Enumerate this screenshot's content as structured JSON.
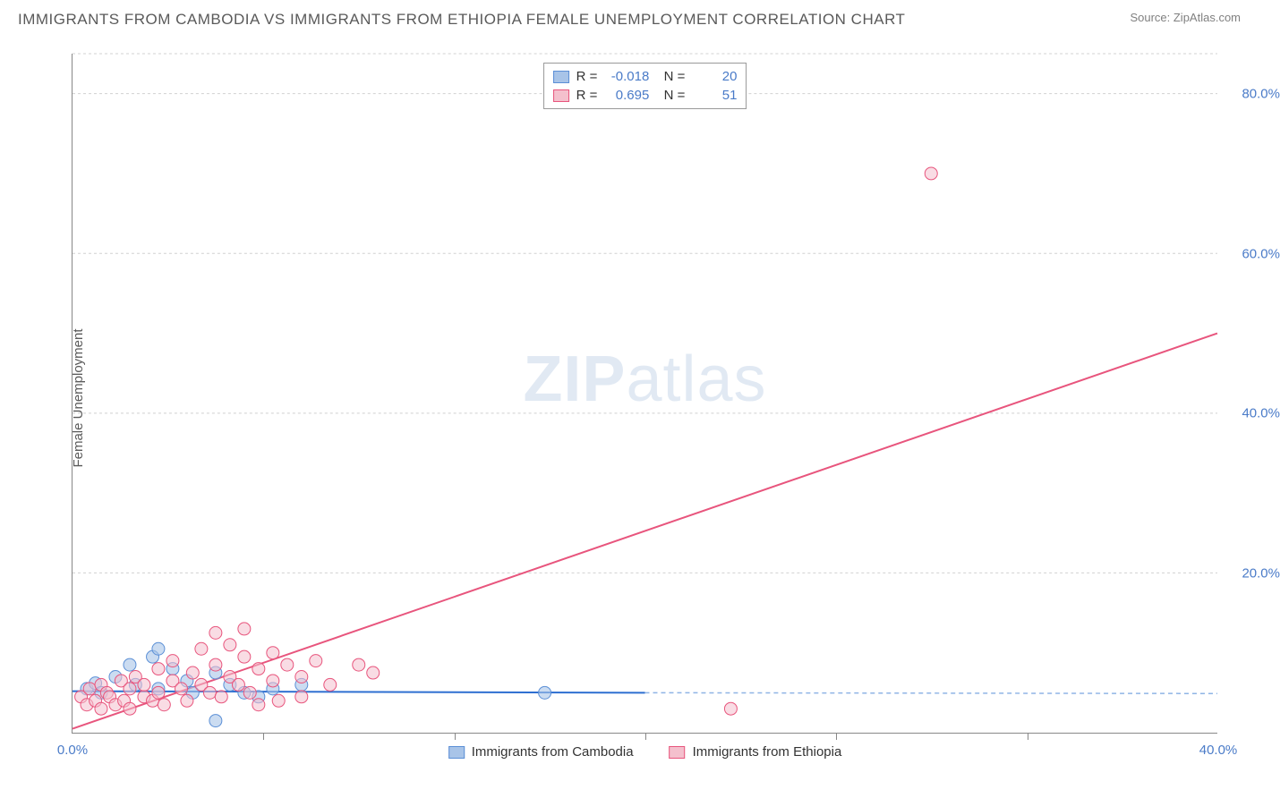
{
  "title": "IMMIGRANTS FROM CAMBODIA VS IMMIGRANTS FROM ETHIOPIA FEMALE UNEMPLOYMENT CORRELATION CHART",
  "source": "Source: ZipAtlas.com",
  "watermark_zip": "ZIP",
  "watermark_atlas": "atlas",
  "y_axis_label": "Female Unemployment",
  "chart": {
    "type": "scatter",
    "xlim": [
      0,
      40
    ],
    "ylim": [
      0,
      85
    ],
    "x_ticks": [
      0,
      40
    ],
    "x_tick_labels": [
      "0.0%",
      "40.0%"
    ],
    "x_minor_ticks": [
      6.67,
      13.33,
      20,
      26.67,
      33.33
    ],
    "y_ticks": [
      20,
      40,
      60,
      80
    ],
    "y_tick_labels": [
      "20.0%",
      "40.0%",
      "60.0%",
      "80.0%"
    ],
    "grid_color": "#d0d0d0",
    "background_color": "#ffffff",
    "series": [
      {
        "name": "Immigrants from Cambodia",
        "color_fill": "#a8c4e8",
        "color_stroke": "#5b8fd6",
        "marker_radius": 7,
        "marker_opacity": 0.6,
        "R": "-0.018",
        "N": "20",
        "regression": {
          "x1": 0,
          "y1": 5.2,
          "x2": 20,
          "y2": 5.0,
          "color": "#2e6fd1",
          "width": 2
        },
        "regression_ext": {
          "x1": 20,
          "y1": 5.0,
          "x2": 40,
          "y2": 4.9,
          "color": "#8fb4e5",
          "width": 1.5,
          "dash": "5,4"
        },
        "points": [
          {
            "x": 0.5,
            "y": 5.5
          },
          {
            "x": 0.8,
            "y": 6.2
          },
          {
            "x": 1.0,
            "y": 5.0
          },
          {
            "x": 1.5,
            "y": 7.0
          },
          {
            "x": 2.0,
            "y": 8.5
          },
          {
            "x": 2.2,
            "y": 6.0
          },
          {
            "x": 2.8,
            "y": 9.5
          },
          {
            "x": 3.0,
            "y": 5.5
          },
          {
            "x": 3.0,
            "y": 10.5
          },
          {
            "x": 3.5,
            "y": 8.0
          },
          {
            "x": 4.0,
            "y": 6.5
          },
          {
            "x": 4.2,
            "y": 5.0
          },
          {
            "x": 5.0,
            "y": 7.5
          },
          {
            "x": 5.0,
            "y": 1.5
          },
          {
            "x": 5.5,
            "y": 6.0
          },
          {
            "x": 6.0,
            "y": 5.0
          },
          {
            "x": 6.5,
            "y": 4.5
          },
          {
            "x": 7.0,
            "y": 5.5
          },
          {
            "x": 8.0,
            "y": 6.0
          },
          {
            "x": 16.5,
            "y": 5.0
          }
        ]
      },
      {
        "name": "Immigrants from Ethiopia",
        "color_fill": "#f4c0cd",
        "color_stroke": "#e8557d",
        "marker_radius": 7,
        "marker_opacity": 0.55,
        "R": "0.695",
        "N": "51",
        "regression": {
          "x1": 0,
          "y1": 0.5,
          "x2": 40,
          "y2": 50,
          "color": "#e8557d",
          "width": 2
        },
        "points": [
          {
            "x": 0.3,
            "y": 4.5
          },
          {
            "x": 0.5,
            "y": 3.5
          },
          {
            "x": 0.6,
            "y": 5.5
          },
          {
            "x": 0.8,
            "y": 4.0
          },
          {
            "x": 1.0,
            "y": 3.0
          },
          {
            "x": 1.0,
            "y": 6.0
          },
          {
            "x": 1.2,
            "y": 5.0
          },
          {
            "x": 1.3,
            "y": 4.5
          },
          {
            "x": 1.5,
            "y": 3.5
          },
          {
            "x": 1.7,
            "y": 6.5
          },
          {
            "x": 1.8,
            "y": 4.0
          },
          {
            "x": 2.0,
            "y": 5.5
          },
          {
            "x": 2.0,
            "y": 3.0
          },
          {
            "x": 2.2,
            "y": 7.0
          },
          {
            "x": 2.5,
            "y": 4.5
          },
          {
            "x": 2.5,
            "y": 6.0
          },
          {
            "x": 2.8,
            "y": 4.0
          },
          {
            "x": 3.0,
            "y": 8.0
          },
          {
            "x": 3.0,
            "y": 5.0
          },
          {
            "x": 3.2,
            "y": 3.5
          },
          {
            "x": 3.5,
            "y": 6.5
          },
          {
            "x": 3.5,
            "y": 9.0
          },
          {
            "x": 3.8,
            "y": 5.5
          },
          {
            "x": 4.0,
            "y": 4.0
          },
          {
            "x": 4.2,
            "y": 7.5
          },
          {
            "x": 4.5,
            "y": 10.5
          },
          {
            "x": 4.5,
            "y": 6.0
          },
          {
            "x": 4.8,
            "y": 5.0
          },
          {
            "x": 5.0,
            "y": 8.5
          },
          {
            "x": 5.0,
            "y": 12.5
          },
          {
            "x": 5.2,
            "y": 4.5
          },
          {
            "x": 5.5,
            "y": 7.0
          },
          {
            "x": 5.5,
            "y": 11.0
          },
          {
            "x": 5.8,
            "y": 6.0
          },
          {
            "x": 6.0,
            "y": 9.5
          },
          {
            "x": 6.0,
            "y": 13.0
          },
          {
            "x": 6.2,
            "y": 5.0
          },
          {
            "x": 6.5,
            "y": 8.0
          },
          {
            "x": 6.5,
            "y": 3.5
          },
          {
            "x": 7.0,
            "y": 10.0
          },
          {
            "x": 7.0,
            "y": 6.5
          },
          {
            "x": 7.2,
            "y": 4.0
          },
          {
            "x": 7.5,
            "y": 8.5
          },
          {
            "x": 8.0,
            "y": 7.0
          },
          {
            "x": 8.0,
            "y": 4.5
          },
          {
            "x": 8.5,
            "y": 9.0
          },
          {
            "x": 9.0,
            "y": 6.0
          },
          {
            "x": 10.0,
            "y": 8.5
          },
          {
            "x": 10.5,
            "y": 7.5
          },
          {
            "x": 23.0,
            "y": 3.0
          },
          {
            "x": 30.0,
            "y": 70.0
          }
        ]
      }
    ]
  },
  "legend_bottom": [
    {
      "label": "Immigrants from Cambodia",
      "fill": "#a8c4e8",
      "stroke": "#5b8fd6"
    },
    {
      "label": "Immigrants from Ethiopia",
      "fill": "#f4c0cd",
      "stroke": "#e8557d"
    }
  ]
}
